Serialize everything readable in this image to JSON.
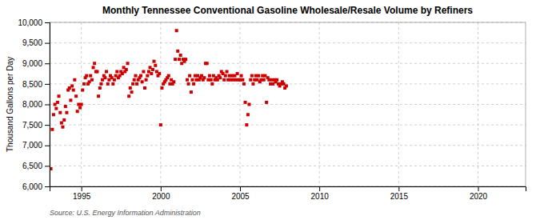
{
  "chart_data": {
    "type": "scatter",
    "title": "Monthly Tennessee Conventional Gasoline Wholesale/Resale Volume by Refiners",
    "ylabel": "Thousand Gallons per Day",
    "annotations": [
      "Source: U.S. Energy Information Administration"
    ],
    "color": "#cc0000",
    "marker": "square",
    "grid": true,
    "xlim": [
      1993.0,
      2023.0
    ],
    "xticks": [
      1995,
      2000,
      2005,
      2010,
      2015,
      2020
    ],
    "ylim": [
      6000,
      10000
    ],
    "yticks": [
      {
        "value": 6000,
        "label": "6,000"
      },
      {
        "value": 6500,
        "label": "6,500"
      },
      {
        "value": 7000,
        "label": "7,000"
      },
      {
        "value": 7500,
        "label": "7,500"
      },
      {
        "value": 8000,
        "label": "8,000"
      },
      {
        "value": 8500,
        "label": "8,500"
      },
      {
        "value": 9000,
        "label": "9,000"
      },
      {
        "value": 9500,
        "label": "9,500"
      },
      {
        "value": 10000,
        "label": "10,000"
      }
    ],
    "x": [
      1993.08,
      1993.17,
      1993.25,
      1993.33,
      1993.42,
      1993.5,
      1993.58,
      1993.67,
      1993.75,
      1993.83,
      1993.92,
      1994.0,
      1994.08,
      1994.17,
      1994.25,
      1994.33,
      1994.42,
      1994.5,
      1994.58,
      1994.67,
      1994.75,
      1994.83,
      1994.92,
      1995.0,
      1995.08,
      1995.17,
      1995.25,
      1995.33,
      1995.42,
      1995.5,
      1995.58,
      1995.67,
      1995.75,
      1995.83,
      1995.92,
      1996.0,
      1996.08,
      1996.17,
      1996.25,
      1996.33,
      1996.42,
      1996.5,
      1996.58,
      1996.67,
      1996.75,
      1996.83,
      1996.92,
      1997.0,
      1997.08,
      1997.17,
      1997.25,
      1997.33,
      1997.42,
      1997.5,
      1997.58,
      1997.67,
      1997.75,
      1997.83,
      1997.92,
      1998.0,
      1998.08,
      1998.17,
      1998.25,
      1998.33,
      1998.42,
      1998.5,
      1998.58,
      1998.67,
      1998.75,
      1998.83,
      1998.92,
      1999.0,
      1999.08,
      1999.17,
      1999.25,
      1999.33,
      1999.42,
      1999.5,
      1999.58,
      1999.67,
      1999.75,
      1999.83,
      1999.92,
      2000.0,
      2000.08,
      2000.17,
      2000.25,
      2000.33,
      2000.42,
      2000.5,
      2000.58,
      2000.67,
      2000.75,
      2000.83,
      2000.92,
      2001.0,
      2001.08,
      2001.17,
      2001.25,
      2001.33,
      2001.42,
      2001.5,
      2001.58,
      2001.67,
      2001.75,
      2001.83,
      2001.92,
      2002.0,
      2002.08,
      2002.17,
      2002.25,
      2002.33,
      2002.42,
      2002.5,
      2002.58,
      2002.67,
      2002.75,
      2002.83,
      2002.92,
      2003.0,
      2003.08,
      2003.17,
      2003.25,
      2003.33,
      2003.42,
      2003.5,
      2003.58,
      2003.67,
      2003.75,
      2003.83,
      2003.92,
      2004.0,
      2004.08,
      2004.17,
      2004.25,
      2004.33,
      2004.42,
      2004.5,
      2004.58,
      2004.67,
      2004.75,
      2004.83,
      2004.92,
      2005.0,
      2005.08,
      2005.17,
      2005.25,
      2005.33,
      2005.42,
      2005.5,
      2005.58,
      2005.67,
      2005.75,
      2005.83,
      2005.92,
      2006.0,
      2006.08,
      2006.17,
      2006.25,
      2006.33,
      2006.42,
      2006.5,
      2006.58,
      2006.67,
      2006.75,
      2006.83,
      2006.92,
      2007.0,
      2007.08,
      2007.17,
      2007.25,
      2007.33,
      2007.42,
      2007.5,
      2007.58,
      2007.67,
      2007.75,
      2007.83,
      2007.92
    ],
    "values": [
      6430,
      7390,
      7750,
      8000,
      7900,
      8050,
      8200,
      7800,
      7550,
      7450,
      7620,
      7950,
      7800,
      8350,
      8400,
      8100,
      8450,
      8350,
      8600,
      8200,
      7830,
      8000,
      7920,
      8000,
      8350,
      8500,
      8650,
      8700,
      8500,
      8550,
      8700,
      8600,
      8900,
      9000,
      8800,
      8800,
      8200,
      8400,
      8500,
      8600,
      8700,
      8650,
      8800,
      8500,
      8600,
      8700,
      8650,
      8500,
      8600,
      8700,
      8800,
      8650,
      8700,
      8800,
      8750,
      8900,
      8800,
      8850,
      9000,
      8200,
      8400,
      8300,
      8500,
      8600,
      8700,
      8500,
      8600,
      8650,
      8700,
      8550,
      8800,
      8400,
      8600,
      8700,
      8800,
      8900,
      8750,
      8850,
      9050,
      8950,
      8800,
      8700,
      8750,
      7500,
      8400,
      8500,
      8550,
      8600,
      8650,
      8700,
      8500,
      8600,
      8500,
      8550,
      9100,
      9800,
      9300,
      9100,
      9200,
      9000,
      9100,
      9050,
      9100,
      8600,
      8500,
      8700,
      8300,
      8600,
      8500,
      8700,
      8600,
      8700,
      8600,
      8650,
      8700,
      8600,
      8650,
      9000,
      9000,
      8600,
      8700,
      8600,
      8500,
      8700,
      8600,
      8650,
      8600,
      8700,
      8650,
      8800,
      8750,
      8600,
      8700,
      8800,
      8600,
      8700,
      8600,
      8700,
      8600,
      8700,
      8600,
      8750,
      8600,
      8600,
      8700,
      8600,
      8500,
      8050,
      7500,
      7750,
      8000,
      8600,
      8700,
      8500,
      8600,
      8700,
      8600,
      8700,
      8550,
      8600,
      8700,
      8600,
      8700,
      8050,
      8650,
      8600,
      8500,
      8600,
      8500,
      8600,
      8550,
      8600,
      8500,
      8450,
      8500,
      8550,
      8500,
      8400,
      8450
    ]
  }
}
